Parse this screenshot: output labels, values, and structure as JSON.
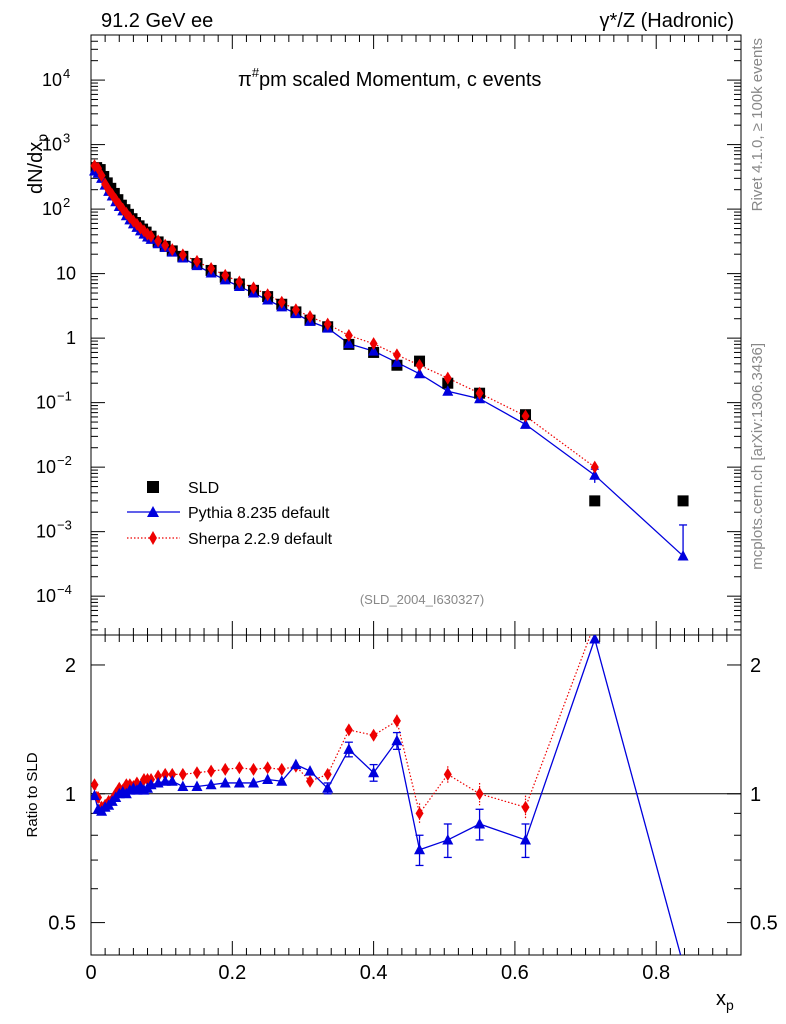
{
  "header": {
    "left": "91.2 GeV ee",
    "right": "γ*/Z (Hadronic)"
  },
  "side_text": {
    "rivet": "Rivet 4.1.0, ≥ 100k events",
    "mcplots": "mcplots.cern.ch [arXiv:1306.3436]"
  },
  "colors": {
    "data": "#000000",
    "pythia": "#0000dd",
    "sherpa": "#ee0000",
    "watermark": "#888888"
  },
  "chart_data": [
    {
      "type": "scatter",
      "panel": "main",
      "title": "π#pm scaled Momentum, c events",
      "title_main": "π",
      "title_sup": "#",
      "title_rest": "pm scaled Momentum, c events",
      "ylabel": "dN/dx",
      "ylabel_sub": "p",
      "yscale": "log",
      "ylim": [
        2.5e-05,
        50000
      ],
      "xlim": [
        0,
        0.92
      ],
      "analysis_tag": "(SLD_2004_I630327)",
      "y_tick_labels": [
        "10",
        "10",
        "10",
        "10",
        "1",
        "10",
        "10",
        "10",
        "10"
      ],
      "y_tick_exponents": [
        "4",
        "3",
        "2",
        "",
        "",
        "−1",
        "−2",
        "−3",
        "−4"
      ],
      "legend": {
        "position": "lower-left",
        "entries": [
          "SLD",
          "Pythia 8.235 default",
          "Sherpa 2.2.9 default"
        ]
      },
      "series": [
        {
          "name": "SLD",
          "style": "markers",
          "x": [
            0.008,
            0.013,
            0.018,
            0.023,
            0.028,
            0.033,
            0.038,
            0.043,
            0.048,
            0.053,
            0.058,
            0.063,
            0.068,
            0.073,
            0.078,
            0.085,
            0.095,
            0.105,
            0.115,
            0.13,
            0.15,
            0.17,
            0.19,
            0.21,
            0.23,
            0.25,
            0.27,
            0.29,
            0.31,
            0.335,
            0.365,
            0.4,
            0.433,
            0.465,
            0.505,
            0.55,
            0.615,
            0.713,
            0.838
          ],
          "values": [
            440,
            410,
            320,
            255,
            210,
            175,
            140,
            115,
            98,
            83,
            71,
            62,
            55,
            49,
            44,
            38,
            31,
            26.5,
            22.5,
            18.5,
            14.3,
            11.2,
            8.8,
            6.9,
            5.5,
            4.4,
            3.35,
            2.55,
            1.9,
            1.5,
            0.8,
            0.6,
            0.38,
            0.44,
            0.2,
            0.14,
            0.065,
            0.003,
            0.003
          ]
        },
        {
          "name": "Pythia 8.235 default",
          "style": "line-triangles",
          "x": [
            0.005,
            0.01,
            0.015,
            0.02,
            0.025,
            0.03,
            0.035,
            0.04,
            0.045,
            0.05,
            0.055,
            0.06,
            0.065,
            0.07,
            0.075,
            0.08,
            0.085,
            0.095,
            0.105,
            0.115,
            0.13,
            0.15,
            0.17,
            0.19,
            0.21,
            0.23,
            0.25,
            0.27,
            0.29,
            0.31,
            0.335,
            0.365,
            0.4,
            0.433,
            0.465,
            0.505,
            0.55,
            0.615,
            0.713,
            0.838
          ],
          "values": [
            390,
            360,
            300,
            235,
            188,
            160,
            130,
            110,
            94,
            79,
            68,
            59,
            52,
            46,
            41,
            37,
            34,
            29,
            25.5,
            21.5,
            17.5,
            13.3,
            10.2,
            8.0,
            6.3,
            5.0,
            3.9,
            3.05,
            2.4,
            1.82,
            1.43,
            0.82,
            0.63,
            0.42,
            0.28,
            0.15,
            0.115,
            0.046,
            0.0075,
            0.00042
          ],
          "error_high": [
            0,
            0,
            0,
            0,
            0,
            0,
            0,
            0,
            0,
            0,
            0,
            0,
            0,
            0,
            0,
            0,
            0,
            0,
            0,
            0,
            0,
            0,
            0,
            0,
            0,
            0,
            0,
            0,
            0,
            0,
            0,
            0,
            0,
            0,
            0,
            0,
            0,
            0,
            0.0018,
            0.00085
          ],
          "error_low": [
            0,
            0,
            0,
            0,
            0,
            0,
            0,
            0,
            0,
            0,
            0,
            0,
            0,
            0,
            0,
            0,
            0,
            0,
            0,
            0,
            0,
            0,
            0,
            0,
            0,
            0,
            0,
            0,
            0,
            0,
            0,
            0,
            0,
            0,
            0,
            0,
            0,
            0,
            0.0018,
            1e-05
          ]
        },
        {
          "name": "Sherpa 2.2.9 default",
          "style": "dotted-diamonds",
          "x": [
            0.005,
            0.01,
            0.015,
            0.02,
            0.025,
            0.03,
            0.035,
            0.04,
            0.045,
            0.05,
            0.055,
            0.06,
            0.065,
            0.07,
            0.075,
            0.08,
            0.085,
            0.095,
            0.105,
            0.115,
            0.13,
            0.15,
            0.17,
            0.19,
            0.21,
            0.23,
            0.25,
            0.27,
            0.29,
            0.31,
            0.335,
            0.365,
            0.4,
            0.433,
            0.465,
            0.505,
            0.55,
            0.615,
            0.713
          ],
          "values": [
            470,
            430,
            330,
            245,
            200,
            168,
            140,
            118,
            100,
            86,
            74,
            65,
            58,
            51,
            46,
            41,
            38,
            32,
            27.5,
            23.5,
            19.5,
            15.5,
            12.0,
            9.4,
            7.4,
            6.0,
            4.7,
            3.6,
            2.75,
            2.15,
            1.65,
            1.1,
            0.82,
            0.55,
            0.38,
            0.24,
            0.14,
            0.062,
            0.01
          ],
          "error_high": [
            0,
            0,
            0,
            0,
            0,
            0,
            0,
            0,
            0,
            0,
            0,
            0,
            0,
            0,
            0,
            0,
            0,
            0,
            0,
            0,
            0,
            0,
            0,
            0,
            0,
            0,
            0,
            0,
            0,
            0,
            0,
            0,
            0,
            0,
            0,
            0,
            0,
            0,
            0.0015
          ],
          "error_low": [
            0,
            0,
            0,
            0,
            0,
            0,
            0,
            0,
            0,
            0,
            0,
            0,
            0,
            0,
            0,
            0,
            0,
            0,
            0,
            0,
            0,
            0,
            0,
            0,
            0,
            0,
            0,
            0,
            0,
            0,
            0,
            0,
            0,
            0,
            0,
            0,
            0,
            0,
            0.0015
          ]
        }
      ]
    },
    {
      "type": "line",
      "panel": "ratio",
      "ylabel": "Ratio to SLD",
      "xlabel": "x",
      "xlabel_sub": "p",
      "yscale": "log",
      "ylim": [
        0.42,
        2.35
      ],
      "xlim": [
        0,
        0.92
      ],
      "reference_line": 1,
      "y_ticks": [
        0.5,
        1,
        2
      ],
      "y_tick_labels": [
        "0.5",
        "1",
        "2"
      ],
      "x_ticks": [
        0,
        0.2,
        0.4,
        0.6,
        0.8
      ],
      "x_tick_labels": [
        "0",
        "0.2",
        "0.4",
        "0.6",
        "0.8"
      ],
      "series": [
        {
          "name": "Pythia 8.235 default",
          "x": [
            0.005,
            0.01,
            0.015,
            0.02,
            0.025,
            0.03,
            0.035,
            0.04,
            0.045,
            0.05,
            0.055,
            0.06,
            0.065,
            0.07,
            0.075,
            0.08,
            0.085,
            0.095,
            0.105,
            0.115,
            0.13,
            0.15,
            0.17,
            0.19,
            0.21,
            0.23,
            0.25,
            0.27,
            0.29,
            0.31,
            0.335,
            0.365,
            0.4,
            0.433,
            0.465,
            0.505,
            0.55,
            0.615,
            0.713,
            0.838
          ],
          "values": [
            0.99,
            0.92,
            0.91,
            0.93,
            0.94,
            0.96,
            0.98,
            1.0,
            1.01,
            1.0,
            1.02,
            1.03,
            1.02,
            1.04,
            1.02,
            1.03,
            1.05,
            1.06,
            1.07,
            1.07,
            1.04,
            1.04,
            1.05,
            1.06,
            1.06,
            1.06,
            1.08,
            1.07,
            1.17,
            1.13,
            1.03,
            1.27,
            1.12,
            1.33,
            0.74,
            0.78,
            0.85,
            0.78,
            2.3,
            0.4
          ],
          "error": [
            0,
            0,
            0,
            0,
            0,
            0,
            0,
            0,
            0,
            0,
            0,
            0,
            0,
            0,
            0,
            0,
            0,
            0,
            0,
            0,
            0,
            0,
            0,
            0,
            0,
            0,
            0,
            0,
            0,
            0,
            0.03,
            0.05,
            0.05,
            0.06,
            0.06,
            0.07,
            0.07,
            0.07,
            0,
            0
          ]
        },
        {
          "name": "Sherpa 2.2.9 default",
          "x": [
            0.005,
            0.01,
            0.015,
            0.02,
            0.025,
            0.03,
            0.035,
            0.04,
            0.045,
            0.05,
            0.055,
            0.06,
            0.065,
            0.07,
            0.075,
            0.08,
            0.085,
            0.095,
            0.105,
            0.115,
            0.13,
            0.15,
            0.17,
            0.19,
            0.21,
            0.23,
            0.25,
            0.27,
            0.29,
            0.31,
            0.335,
            0.365,
            0.4,
            0.433,
            0.465,
            0.505,
            0.55,
            0.615,
            0.713
          ],
          "values": [
            1.05,
            0.98,
            0.93,
            0.94,
            0.96,
            0.97,
            1.0,
            1.03,
            1.02,
            1.05,
            1.05,
            1.04,
            1.06,
            1.04,
            1.08,
            1.08,
            1.08,
            1.1,
            1.11,
            1.11,
            1.11,
            1.12,
            1.13,
            1.14,
            1.15,
            1.14,
            1.15,
            1.14,
            1.16,
            1.07,
            1.11,
            1.41,
            1.37,
            1.48,
            0.9,
            1.11,
            1.0,
            0.93,
            2.5
          ],
          "error": [
            0.03,
            0.02,
            0.02,
            0.02,
            0.02,
            0.02,
            0.02,
            0.02,
            0.02,
            0.02,
            0.02,
            0.02,
            0.02,
            0.02,
            0.02,
            0.02,
            0.02,
            0.02,
            0.02,
            0.02,
            0.02,
            0.02,
            0.02,
            0.02,
            0.02,
            0.02,
            0.02,
            0.02,
            0.02,
            0.03,
            0.03,
            0.04,
            0.04,
            0.05,
            0.05,
            0.05,
            0.06,
            0.06,
            0
          ]
        }
      ]
    }
  ]
}
